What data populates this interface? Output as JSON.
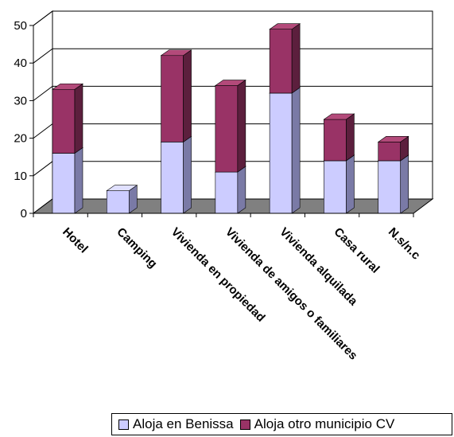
{
  "chart_data": {
    "type": "bar",
    "stacked": true,
    "three_d": true,
    "categories": [
      "Hotel",
      "Camping",
      "Vivienda en propiedad",
      "Vivienda de amigos o familiares",
      "Vivienda alquilada",
      "Casa rural",
      "N.s/n.c"
    ],
    "series": [
      {
        "name": "Aloja en Benissa",
        "values": [
          16,
          6,
          19,
          11,
          32,
          14,
          14
        ]
      },
      {
        "name": "Aloja otro municipio CV",
        "values": [
          17,
          0,
          23,
          23,
          17,
          11,
          5
        ]
      }
    ],
    "yticks": [
      "0",
      "10",
      "20",
      "30",
      "40",
      "50"
    ],
    "ylim": [
      0,
      50
    ],
    "grid": true,
    "legend": "bottom-right"
  },
  "colors": {
    "series_front": [
      "#ccccff",
      "#993366"
    ],
    "series_side": [
      "#7a7aa6",
      "#5c1f3d"
    ],
    "series_top": [
      "#e0e0ff",
      "#b34a7a"
    ],
    "floor": "#808080",
    "grid": "#000000"
  }
}
